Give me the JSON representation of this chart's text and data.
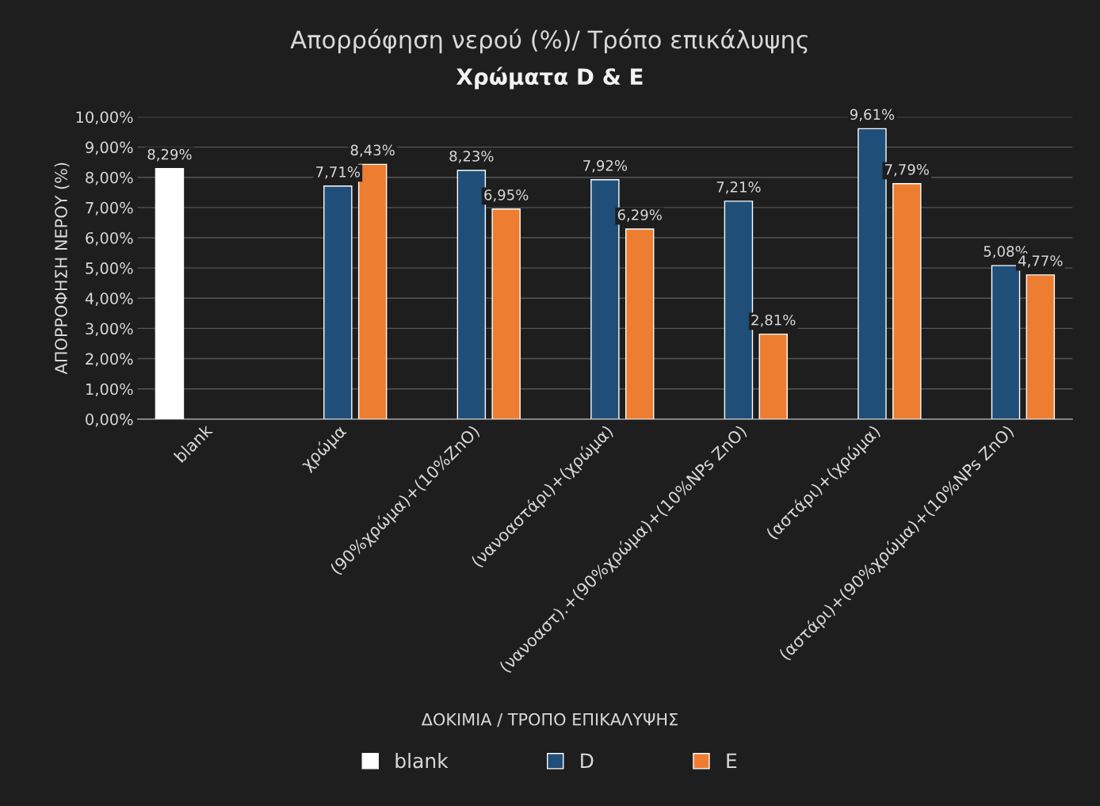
{
  "chart_data": {
    "type": "bar",
    "title": "Απορρόφηση νερού (%)/ Τρόπο επικάλυψης",
    "subtitle": "Χρώματα D & E",
    "xlabel": "ΔΟΚΙΜΙΑ / ΤΡΟΠΟ ΕΠΙΚΑΛΥΨΗΣ",
    "ylabel": "ΑΠΟΡΡΟΦΗΣΗ ΝΕΡΟΥ (%)",
    "categories": [
      "blank",
      "χρώμα",
      "(90%χρώμα)+(10%ZnO)",
      "(νανοαστάρι)+(χρώμα)",
      "(νανοαστ).+(90%χρώμα)+(10%NPs ZnO)",
      "(αστάρι)+(χρώμα)",
      "(αστάρι)+(90%χρώμα)+(10%NPs ZnO)"
    ],
    "series": [
      {
        "name": "blank",
        "color": "#ffffff",
        "values": [
          8.29,
          null,
          null,
          null,
          null,
          null,
          null
        ],
        "value_labels": [
          "8,29%",
          null,
          null,
          null,
          null,
          null,
          null
        ]
      },
      {
        "name": "D",
        "color": "#1f4e79",
        "values": [
          null,
          7.71,
          8.23,
          7.92,
          7.21,
          9.61,
          5.08
        ],
        "value_labels": [
          null,
          "7,71%",
          "8,23%",
          "7,92%",
          "7,21%",
          "9,61%",
          "5,08%"
        ]
      },
      {
        "name": "E",
        "color": "#ed7d31",
        "values": [
          null,
          8.43,
          6.95,
          6.29,
          2.81,
          7.79,
          4.77
        ],
        "value_labels": [
          null,
          "8,43%",
          "6,95%",
          "6,29%",
          "2,81%",
          "7,79%",
          "4,77%"
        ]
      }
    ],
    "ylim": [
      0,
      10
    ],
    "yticks": [
      {
        "value": 0,
        "label": "0,00%"
      },
      {
        "value": 1,
        "label": "1,00%"
      },
      {
        "value": 2,
        "label": "2,00%"
      },
      {
        "value": 3,
        "label": "3,00%"
      },
      {
        "value": 4,
        "label": "4,00%"
      },
      {
        "value": 5,
        "label": "5,00%"
      },
      {
        "value": 6,
        "label": "6,00%"
      },
      {
        "value": 7,
        "label": "7,00%"
      },
      {
        "value": 8,
        "label": "8,00%"
      },
      {
        "value": 9,
        "label": "9,00%"
      },
      {
        "value": 10,
        "label": "10,00%"
      }
    ],
    "grid": "y",
    "legend": "bottom"
  }
}
